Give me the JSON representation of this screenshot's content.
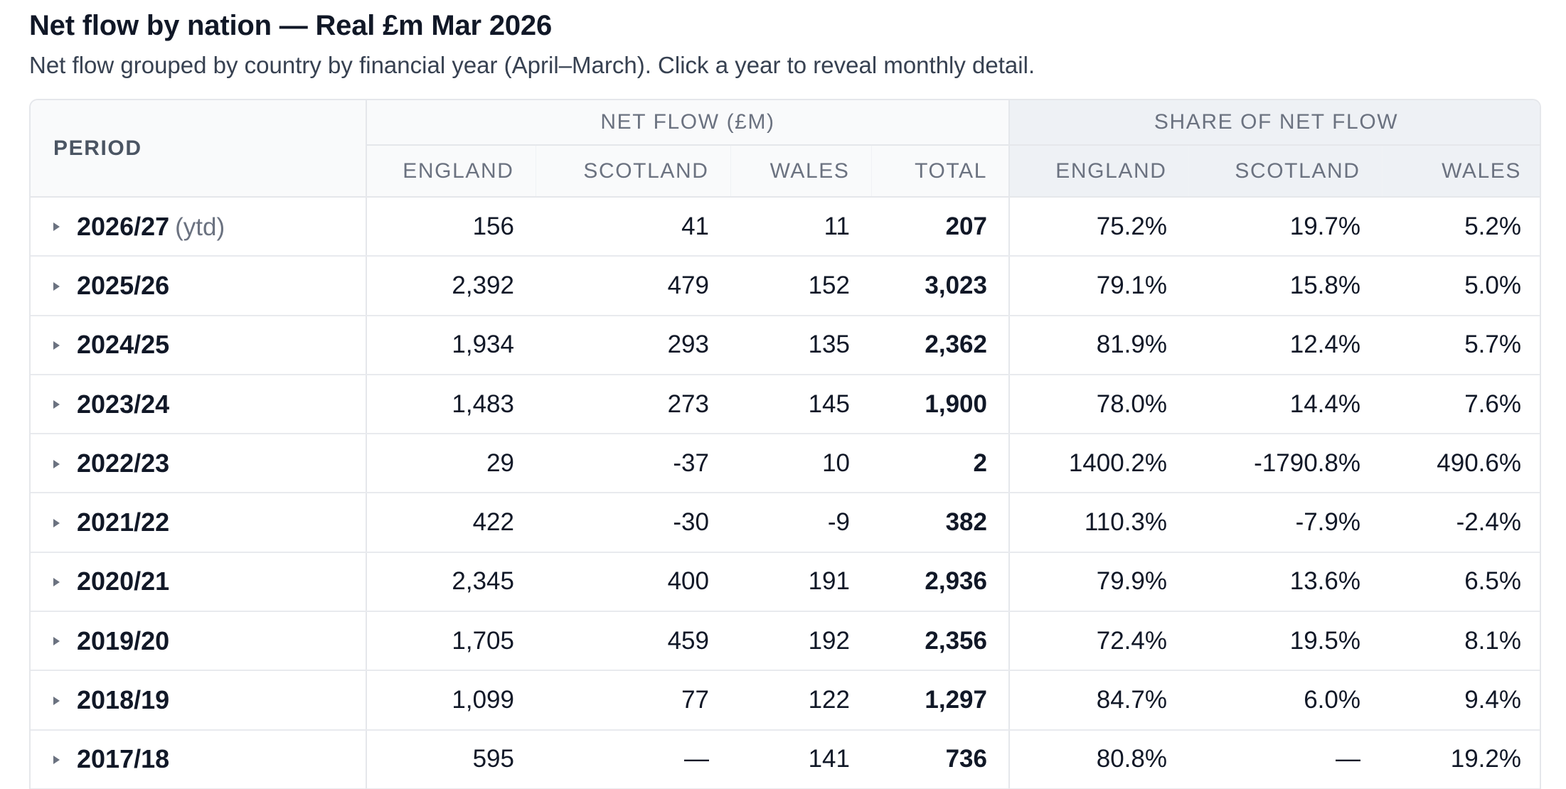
{
  "page": {
    "title": "Net flow by nation — Real £m Mar 2026",
    "subtitle": "Net flow grouped by country by financial year (April–March). Click a year to reveal monthly detail."
  },
  "table": {
    "period_header": "PERIOD",
    "group_net_flow": "NET FLOW (£M)",
    "group_share": "SHARE OF NET FLOW",
    "net_columns": [
      "ENGLAND",
      "SCOTLAND",
      "WALES",
      "TOTAL"
    ],
    "share_columns": [
      "ENGLAND",
      "SCOTLAND",
      "WALES"
    ],
    "rows": [
      {
        "year": "2026/27",
        "note": "(ytd)",
        "england": "156",
        "scotland": "41",
        "wales": "11",
        "total": "207",
        "share_england": "75.2%",
        "share_scotland": "19.7%",
        "share_wales": "5.2%"
      },
      {
        "year": "2025/26",
        "note": "",
        "england": "2,392",
        "scotland": "479",
        "wales": "152",
        "total": "3,023",
        "share_england": "79.1%",
        "share_scotland": "15.8%",
        "share_wales": "5.0%"
      },
      {
        "year": "2024/25",
        "note": "",
        "england": "1,934",
        "scotland": "293",
        "wales": "135",
        "total": "2,362",
        "share_england": "81.9%",
        "share_scotland": "12.4%",
        "share_wales": "5.7%"
      },
      {
        "year": "2023/24",
        "note": "",
        "england": "1,483",
        "scotland": "273",
        "wales": "145",
        "total": "1,900",
        "share_england": "78.0%",
        "share_scotland": "14.4%",
        "share_wales": "7.6%"
      },
      {
        "year": "2022/23",
        "note": "",
        "england": "29",
        "scotland": "-37",
        "wales": "10",
        "total": "2",
        "share_england": "1400.2%",
        "share_scotland": "-1790.8%",
        "share_wales": "490.6%"
      },
      {
        "year": "2021/22",
        "note": "",
        "england": "422",
        "scotland": "-30",
        "wales": "-9",
        "total": "382",
        "share_england": "110.3%",
        "share_scotland": "-7.9%",
        "share_wales": "-2.4%"
      },
      {
        "year": "2020/21",
        "note": "",
        "england": "2,345",
        "scotland": "400",
        "wales": "191",
        "total": "2,936",
        "share_england": "79.9%",
        "share_scotland": "13.6%",
        "share_wales": "6.5%"
      },
      {
        "year": "2019/20",
        "note": "",
        "england": "1,705",
        "scotland": "459",
        "wales": "192",
        "total": "2,356",
        "share_england": "72.4%",
        "share_scotland": "19.5%",
        "share_wales": "8.1%"
      },
      {
        "year": "2018/19",
        "note": "",
        "england": "1,099",
        "scotland": "77",
        "wales": "122",
        "total": "1,297",
        "share_england": "84.7%",
        "share_scotland": "6.0%",
        "share_wales": "9.4%"
      },
      {
        "year": "2017/18",
        "note": "",
        "england": "595",
        "scotland": "—",
        "wales": "141",
        "total": "736",
        "share_england": "80.8%",
        "share_scotland": "—",
        "share_wales": "19.2%"
      }
    ]
  },
  "icons": {
    "row_toggle": "caret-right-icon"
  },
  "colors": {
    "header_bg": "#f9fafb",
    "share_header_bg": "#eef1f5",
    "border": "#e5e7eb",
    "muted_text": "#6b7280"
  }
}
